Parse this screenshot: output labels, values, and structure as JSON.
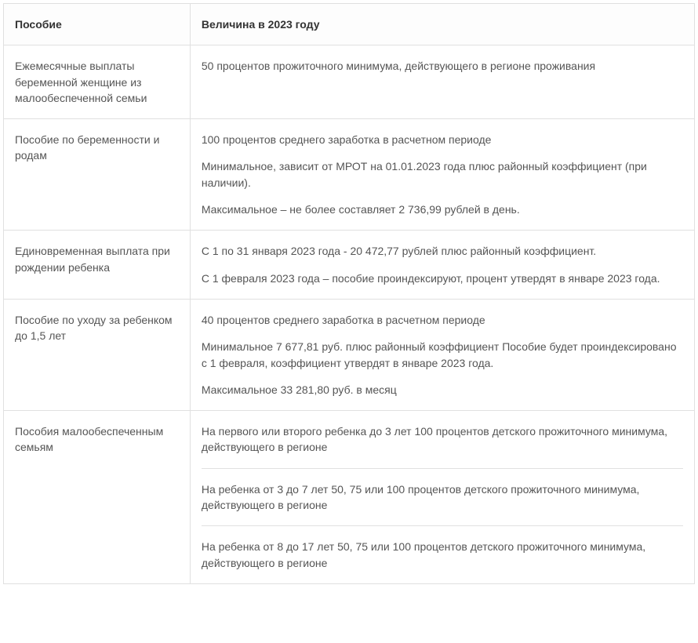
{
  "table": {
    "border_color": "#a6d278",
    "cell_border_color": "#e0e0e0",
    "text_color": "#555555",
    "header_color": "#333333",
    "font_size": 14,
    "col1_width_percent": 27,
    "columns": [
      "Пособие",
      "Величина в 2023 году"
    ],
    "rows": [
      {
        "benefit": "Ежемесячные выплаты беременной женщине из малообеспеченной семьи",
        "amounts": [
          "50 процентов прожиточного минимума, действующего в регионе проживания"
        ]
      },
      {
        "benefit": "Пособие по беременности и родам",
        "amounts": [
          "100 процентов среднего заработка в расчетном периоде",
          "Минимальное, зависит от МРОТ на 01.01.2023 года плюс районный коэффициент (при наличии).",
          "Максимальное – не более составляет 2 736,99 рублей в день."
        ]
      },
      {
        "benefit": "Единовременная выплата при рождении ребенка",
        "amounts": [
          "С 1 по 31 января 2023 года - 20 472,77 рублей плюс районный коэффициент.",
          "С 1 февраля 2023 года – пособие проиндексируют, процент утвердят в январе 2023 года."
        ]
      },
      {
        "benefit": "Пособие по уходу за ребенком до 1,5 лет",
        "amounts": [
          "40 процентов среднего заработка в расчетном периоде",
          "Минимальное 7 677,81 руб. плюс районный коэффициент Пособие будет проиндексировано с 1 февраля, коэффициент утвердят в январе 2023 года.",
          "Максимальное 33 281,80 руб. в месяц"
        ]
      },
      {
        "benefit": "Пособия малообеспеченным семьям",
        "amounts": [
          "На первого или второго ребенка до 3 лет 100 процентов детского прожиточного минимума, действующего в регионе"
        ],
        "sub_amounts": [
          "На ребенка от 3 до 7 лет 50, 75 или 100 процентов детского прожиточного минимума, действующего в регионе",
          "На ребенка от 8 до 17 лет 50, 75 или 100 процентов детского прожиточного минимума, действующего в регионе"
        ]
      }
    ]
  }
}
